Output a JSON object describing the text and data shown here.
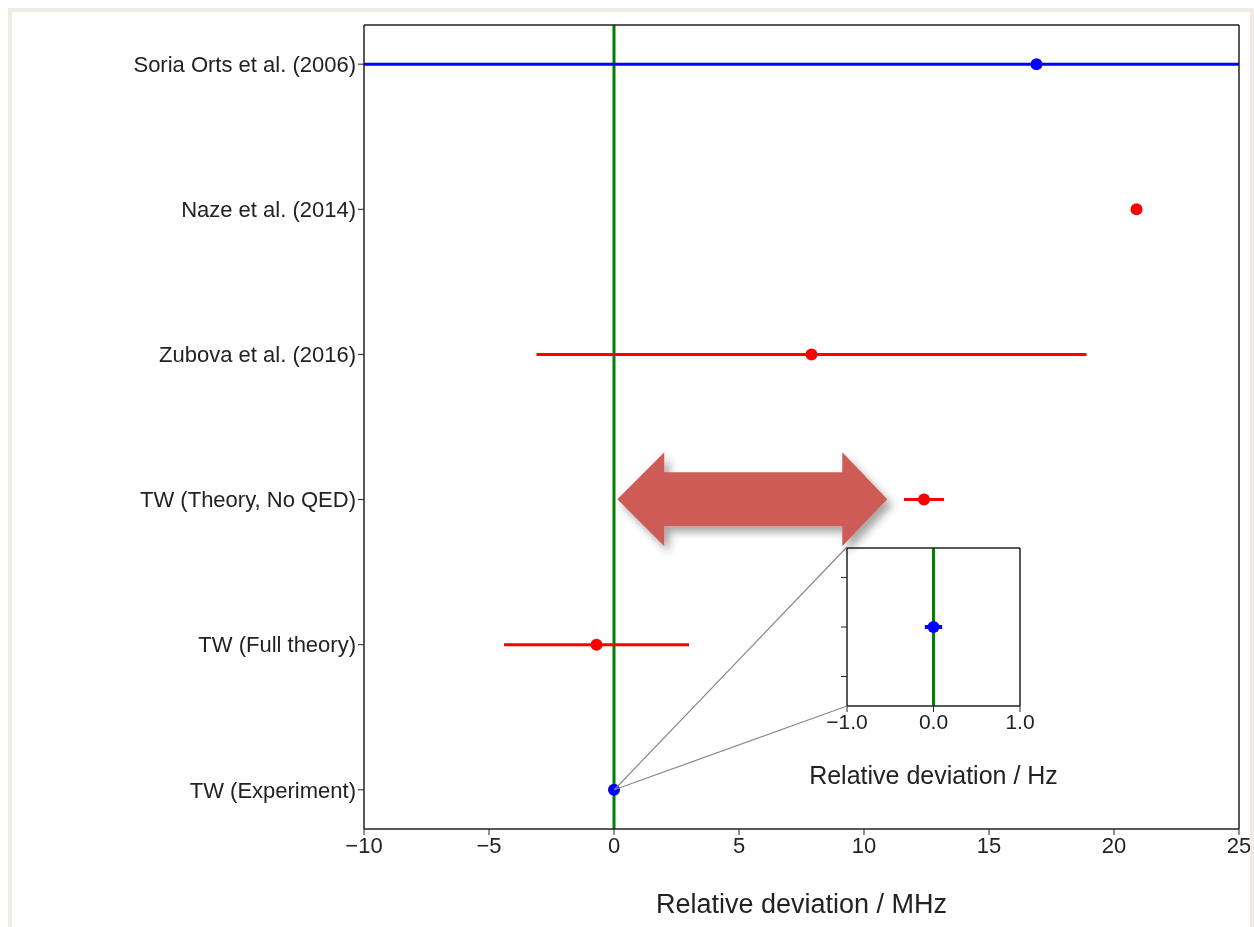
{
  "chart_data": [
    {
      "type": "scatter",
      "orientation": "horizontal",
      "categories": [
        "Soria Orts et al. (2006)",
        "Naze et al. (2014)",
        "Zubova et al. (2016)",
        "TW (Theory, No QED)",
        "TW (Full theory)",
        "TW (Experiment)"
      ],
      "values": [
        16.9,
        20.9,
        7.9,
        12.4,
        -0.7,
        0
      ],
      "errors": [
        [
          -10,
          25
        ],
        null,
        [
          -3.1,
          18.9
        ],
        [
          11.6,
          13.2
        ],
        [
          -4.4,
          3.0
        ],
        null
      ],
      "colors": [
        "#0000ff",
        "#ff0000",
        "#ff0000",
        "#ff0000",
        "#ff0000",
        "#0000ff"
      ],
      "xlabel": "Relative deviation / MHz",
      "xlim": [
        -10,
        25
      ],
      "xticks": [
        {
          "value": -10,
          "label": "−10"
        },
        {
          "value": -5,
          "label": "−5"
        },
        0,
        5,
        10,
        15,
        20,
        25
      ],
      "ref_lines": [
        {
          "axis": "x",
          "value": 0,
          "color": "#008000"
        }
      ],
      "marker": "circle"
    },
    {
      "type": "scatter",
      "orientation": "horizontal",
      "categories": [
        null,
        null,
        null
      ],
      "values": [
        null,
        0,
        null
      ],
      "errors": [
        null,
        [
          -0.1,
          0.1
        ],
        null
      ],
      "color": "#0000ff",
      "xlabel": "Relative deviation / Hz",
      "xlim": [
        -1,
        1
      ],
      "xticks": [
        {
          "value": -1,
          "label": "−1.0"
        },
        {
          "value": 0,
          "label": "0.0"
        },
        {
          "value": 1,
          "label": "1.0"
        }
      ],
      "ref_lines": [
        {
          "axis": "x",
          "value": 0,
          "color": "#008000"
        }
      ],
      "marker": "circle"
    }
  ]
}
